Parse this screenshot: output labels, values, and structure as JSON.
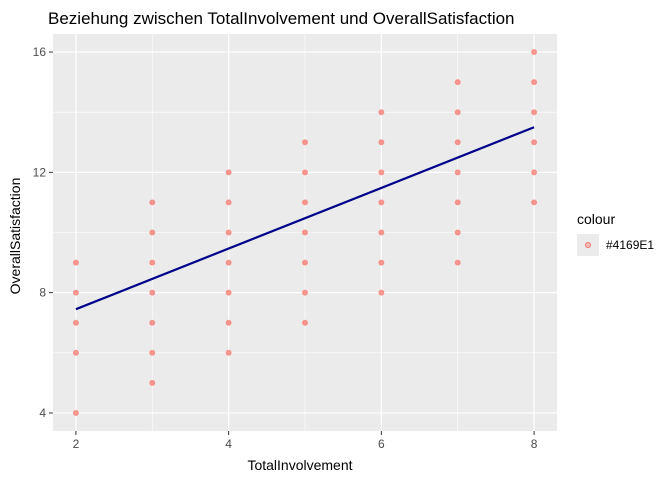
{
  "chart_data": {
    "type": "scatter",
    "title": "Beziehung zwischen TotalInvolvement und OverallSatisfaction",
    "xlabel": "TotalInvolvement",
    "ylabel": "OverallSatisfaction",
    "xlim": [
      1.7,
      8.3
    ],
    "ylim": [
      3.4,
      16.6
    ],
    "x_ticks": [
      2,
      4,
      6,
      8
    ],
    "y_ticks": [
      4,
      8,
      12,
      16
    ],
    "x_minor_ticks": [
      3,
      5,
      7
    ],
    "y_minor_ticks": [
      6,
      10,
      14
    ],
    "grid": true,
    "legend": {
      "title": "colour",
      "position": "right",
      "entries": [
        {
          "label": "#4169E1",
          "color": "#F8766D"
        }
      ]
    },
    "points": [
      {
        "x": 2,
        "y": 4
      },
      {
        "x": 2,
        "y": 6
      },
      {
        "x": 2,
        "y": 7
      },
      {
        "x": 2,
        "y": 8
      },
      {
        "x": 2,
        "y": 9
      },
      {
        "x": 3,
        "y": 5
      },
      {
        "x": 3,
        "y": 6
      },
      {
        "x": 3,
        "y": 7
      },
      {
        "x": 3,
        "y": 8
      },
      {
        "x": 3,
        "y": 9
      },
      {
        "x": 3,
        "y": 10
      },
      {
        "x": 3,
        "y": 11
      },
      {
        "x": 4,
        "y": 6
      },
      {
        "x": 4,
        "y": 7
      },
      {
        "x": 4,
        "y": 8
      },
      {
        "x": 4,
        "y": 9
      },
      {
        "x": 4,
        "y": 10
      },
      {
        "x": 4,
        "y": 11
      },
      {
        "x": 4,
        "y": 12
      },
      {
        "x": 5,
        "y": 7
      },
      {
        "x": 5,
        "y": 8
      },
      {
        "x": 5,
        "y": 9
      },
      {
        "x": 5,
        "y": 10
      },
      {
        "x": 5,
        "y": 11
      },
      {
        "x": 5,
        "y": 12
      },
      {
        "x": 5,
        "y": 13
      },
      {
        "x": 6,
        "y": 8
      },
      {
        "x": 6,
        "y": 9
      },
      {
        "x": 6,
        "y": 10
      },
      {
        "x": 6,
        "y": 11
      },
      {
        "x": 6,
        "y": 12
      },
      {
        "x": 6,
        "y": 13
      },
      {
        "x": 6,
        "y": 14
      },
      {
        "x": 7,
        "y": 9
      },
      {
        "x": 7,
        "y": 10
      },
      {
        "x": 7,
        "y": 11
      },
      {
        "x": 7,
        "y": 12
      },
      {
        "x": 7,
        "y": 13
      },
      {
        "x": 7,
        "y": 14
      },
      {
        "x": 7,
        "y": 15
      },
      {
        "x": 8,
        "y": 11
      },
      {
        "x": 8,
        "y": 12
      },
      {
        "x": 8,
        "y": 13
      },
      {
        "x": 8,
        "y": 14
      },
      {
        "x": 8,
        "y": 15
      },
      {
        "x": 8,
        "y": 16
      }
    ],
    "trend_line": {
      "x": [
        2,
        8
      ],
      "y": [
        7.45,
        13.5
      ],
      "color": "#00008B"
    },
    "point_color": "#F8766D",
    "panel_color": "#EBEBEB",
    "grid_color": "#FFFFFF"
  }
}
